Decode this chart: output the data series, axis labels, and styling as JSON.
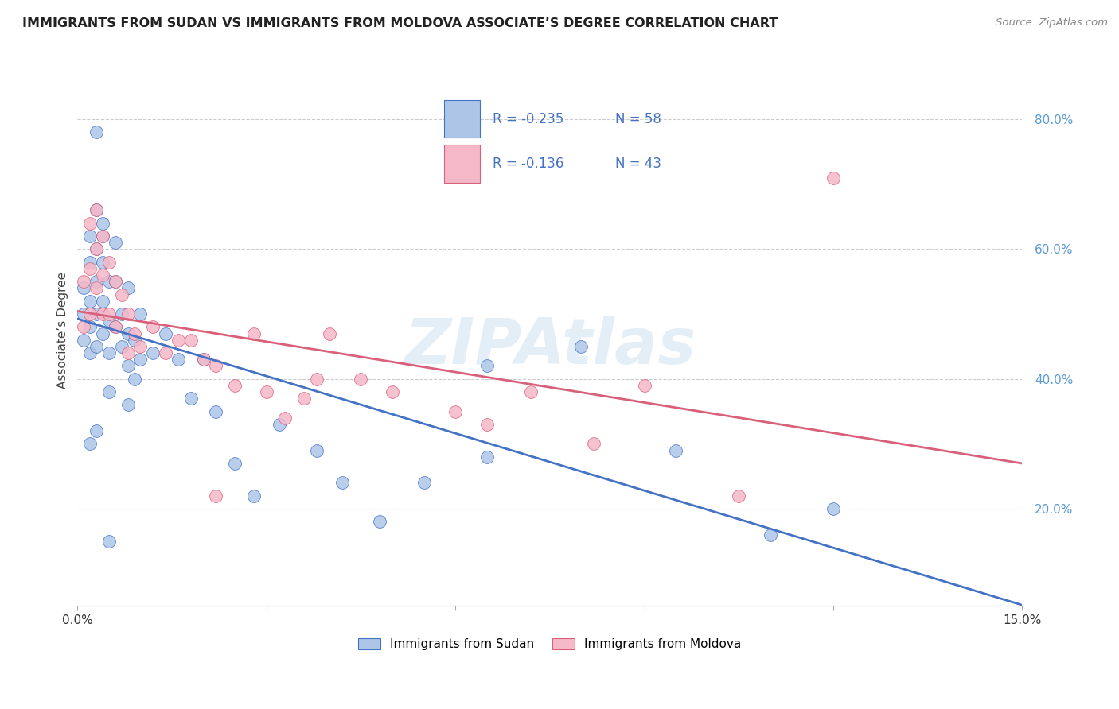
{
  "title": "IMMIGRANTS FROM SUDAN VS IMMIGRANTS FROM MOLDOVA ASSOCIATE’S DEGREE CORRELATION CHART",
  "source": "Source: ZipAtlas.com",
  "ylabel": "Associate’s Degree",
  "y_ticks": [
    0.2,
    0.4,
    0.6,
    0.8
  ],
  "y_tick_labels": [
    "20.0%",
    "40.0%",
    "60.0%",
    "80.0%"
  ],
  "xlim": [
    0.0,
    0.15
  ],
  "ylim": [
    0.05,
    0.9
  ],
  "legend_sudan_R": "-0.235",
  "legend_sudan_N": "58",
  "legend_moldova_R": "-0.136",
  "legend_moldova_N": "43",
  "sudan_fill": "#adc6e8",
  "moldova_fill": "#f5b8c8",
  "line_sudan_color": "#4472c4",
  "line_moldova_color": "#d9607a",
  "watermark": "ZIPAtlas",
  "sudan_x": [
    0.001,
    0.001,
    0.001,
    0.002,
    0.002,
    0.002,
    0.002,
    0.002,
    0.003,
    0.003,
    0.003,
    0.003,
    0.003,
    0.003,
    0.004,
    0.004,
    0.004,
    0.004,
    0.004,
    0.005,
    0.005,
    0.005,
    0.005,
    0.006,
    0.006,
    0.006,
    0.007,
    0.007,
    0.008,
    0.008,
    0.008,
    0.009,
    0.009,
    0.01,
    0.01,
    0.012,
    0.014,
    0.016,
    0.018,
    0.02,
    0.022,
    0.025,
    0.028,
    0.032,
    0.038,
    0.042,
    0.048,
    0.055,
    0.065,
    0.08,
    0.095,
    0.11,
    0.12,
    0.065,
    0.008,
    0.003,
    0.002,
    0.005
  ],
  "sudan_y": [
    0.5,
    0.54,
    0.46,
    0.62,
    0.58,
    0.52,
    0.48,
    0.44,
    0.66,
    0.6,
    0.55,
    0.5,
    0.45,
    0.78,
    0.64,
    0.58,
    0.52,
    0.47,
    0.62,
    0.55,
    0.49,
    0.44,
    0.38,
    0.61,
    0.55,
    0.48,
    0.5,
    0.45,
    0.54,
    0.47,
    0.42,
    0.46,
    0.4,
    0.5,
    0.43,
    0.44,
    0.47,
    0.43,
    0.37,
    0.43,
    0.35,
    0.27,
    0.22,
    0.33,
    0.29,
    0.24,
    0.18,
    0.24,
    0.42,
    0.45,
    0.29,
    0.16,
    0.2,
    0.28,
    0.36,
    0.32,
    0.3,
    0.15
  ],
  "moldova_x": [
    0.001,
    0.001,
    0.002,
    0.002,
    0.002,
    0.003,
    0.003,
    0.003,
    0.004,
    0.004,
    0.004,
    0.005,
    0.005,
    0.006,
    0.006,
    0.007,
    0.008,
    0.008,
    0.009,
    0.01,
    0.012,
    0.014,
    0.016,
    0.018,
    0.02,
    0.022,
    0.025,
    0.028,
    0.03,
    0.033,
    0.036,
    0.04,
    0.045,
    0.05,
    0.06,
    0.065,
    0.072,
    0.082,
    0.09,
    0.105,
    0.12,
    0.038,
    0.022
  ],
  "moldova_y": [
    0.55,
    0.48,
    0.64,
    0.57,
    0.5,
    0.66,
    0.6,
    0.54,
    0.62,
    0.56,
    0.5,
    0.58,
    0.5,
    0.55,
    0.48,
    0.53,
    0.5,
    0.44,
    0.47,
    0.45,
    0.48,
    0.44,
    0.46,
    0.46,
    0.43,
    0.42,
    0.39,
    0.47,
    0.38,
    0.34,
    0.37,
    0.47,
    0.4,
    0.38,
    0.35,
    0.33,
    0.38,
    0.3,
    0.39,
    0.22,
    0.71,
    0.4,
    0.22
  ]
}
